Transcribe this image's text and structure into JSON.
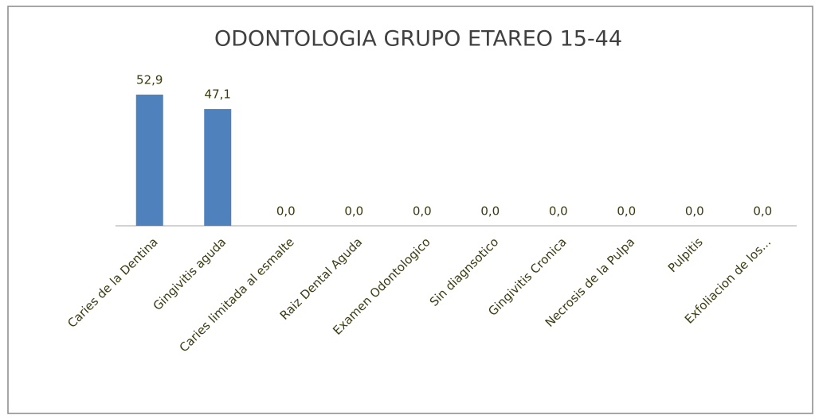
{
  "chart_data": {
    "type": "bar",
    "title": "ODONTOLOGIA GRUPO ETAREO 15-44",
    "categories": [
      "Caries de la Dentina",
      "Gingivitis aguda",
      "Caries limitada al esmalte",
      "Raiz Dental Aguda",
      "Examen Odontologico",
      "Sin diagnsotico",
      "Gingivitis Cronica",
      "Necrosis de la Pulpa",
      "Pulpitis",
      "Exfoliacion de los..."
    ],
    "values": [
      52.9,
      47.1,
      0,
      0,
      0,
      0,
      0,
      0,
      0,
      0
    ],
    "value_labels": [
      "52,9",
      "47,1",
      "0,0",
      "0,0",
      "0,0",
      "0,0",
      "0,0",
      "0,0",
      "0,0",
      "0,0"
    ],
    "color": "#4f81bd"
  }
}
